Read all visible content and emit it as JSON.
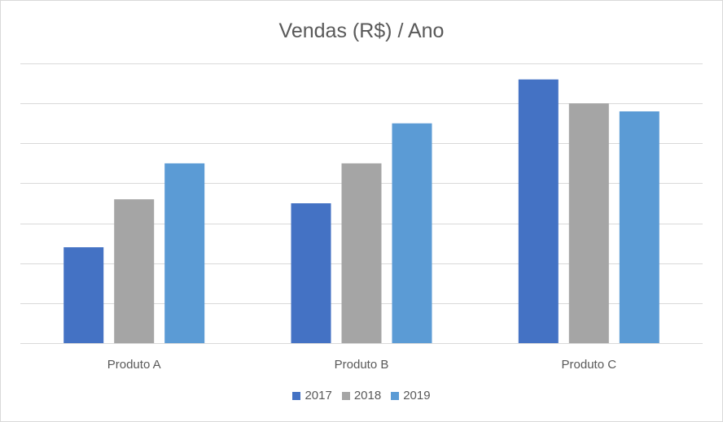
{
  "chart_data": {
    "type": "bar",
    "title": "Vendas (R$) / Ano",
    "categories": [
      "Produto A",
      "Produto B",
      "Produto C"
    ],
    "series": [
      {
        "name": "2017",
        "color": "#4472c4",
        "values": [
          2.4,
          3.5,
          6.6
        ]
      },
      {
        "name": "2018",
        "color": "#a5a5a5",
        "values": [
          3.6,
          4.5,
          6.0
        ]
      },
      {
        "name": "2019",
        "color": "#5b9bd5",
        "values": [
          4.5,
          5.5,
          5.8
        ]
      }
    ],
    "xlabel": "",
    "ylabel": "",
    "ylim": [
      0,
      7
    ],
    "y_gridline_step": 1,
    "y_tick_labels_visible": false,
    "grid": true,
    "gridline_color": "#d9d9d9",
    "legend_position": "bottom"
  }
}
